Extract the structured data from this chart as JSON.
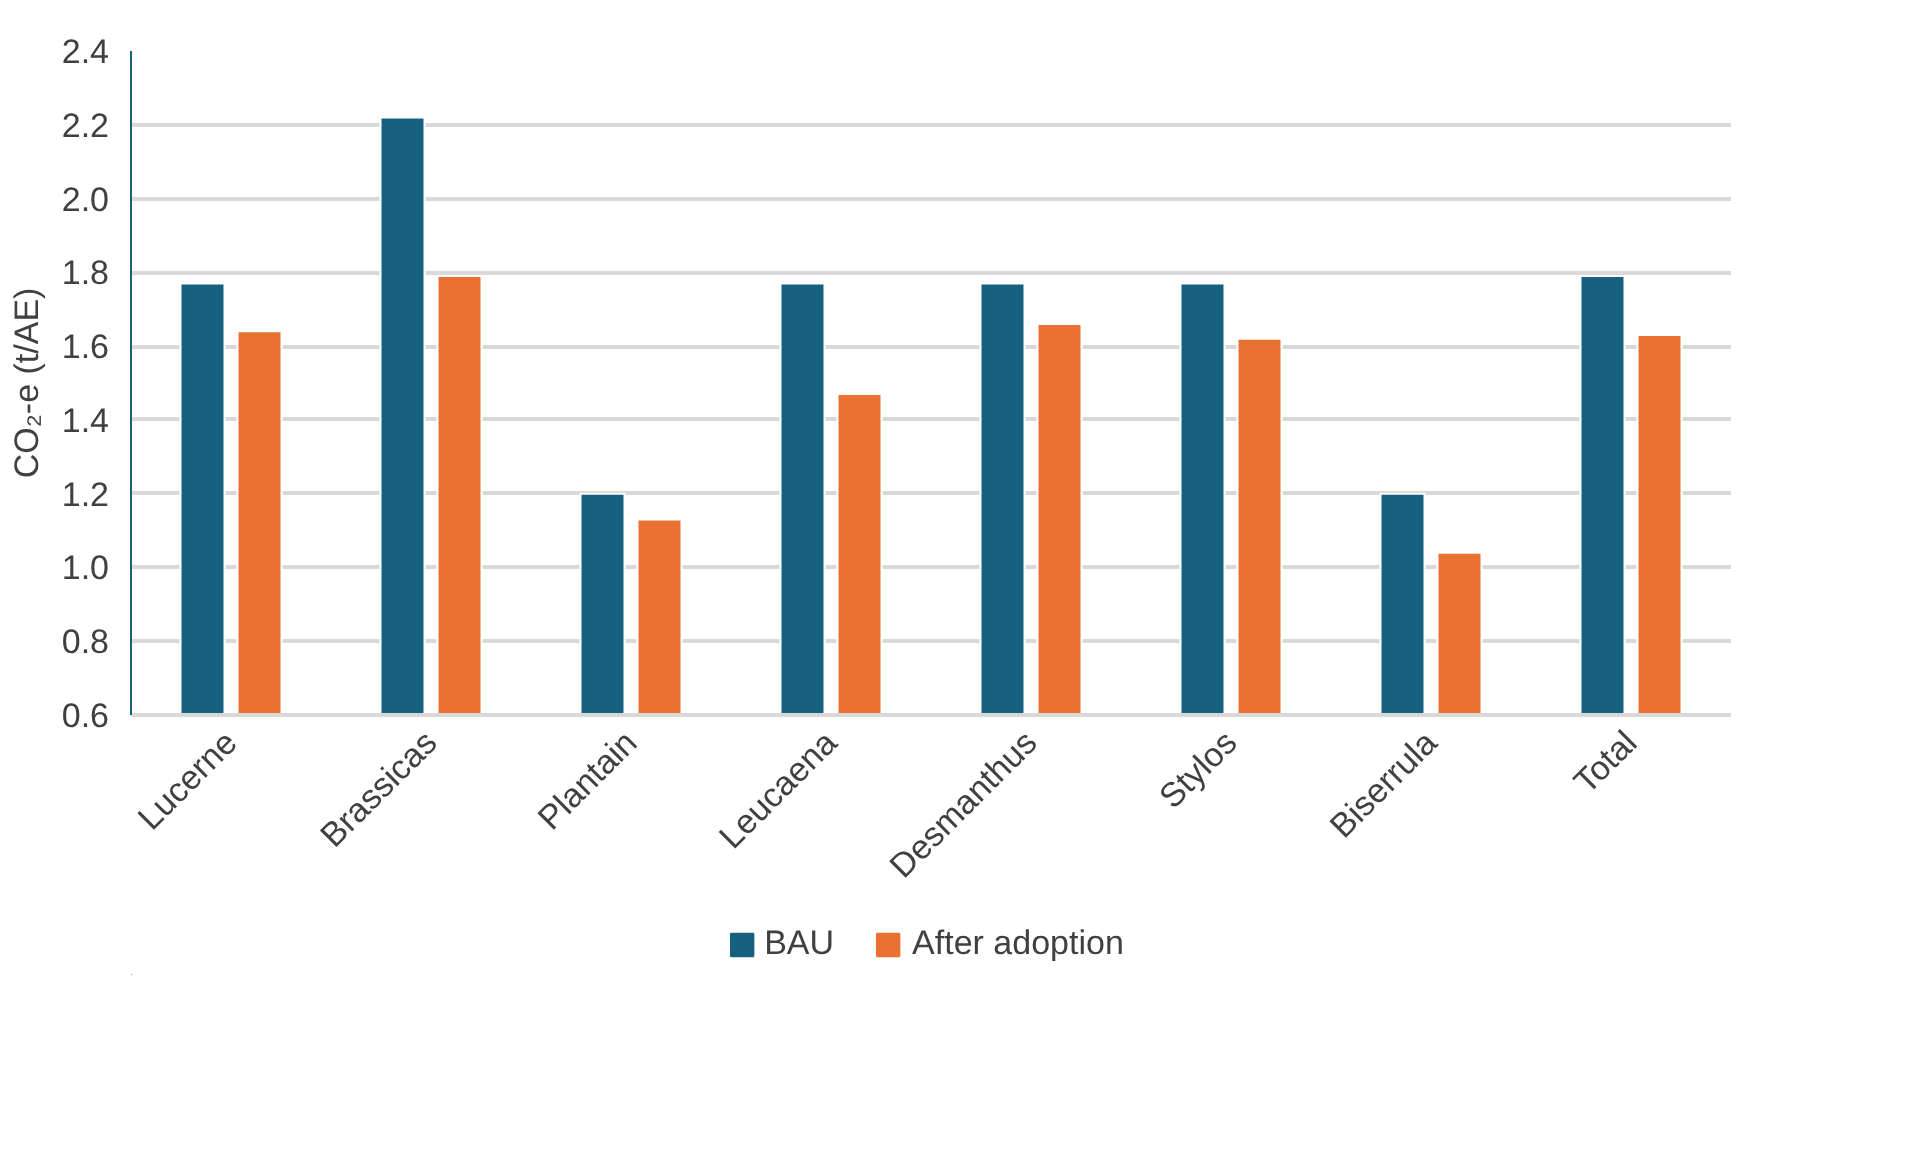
{
  "chart_data": {
    "type": "bar",
    "ylabel": "CO₂-e (t/AE)",
    "categories": [
      "Lucerne",
      "Brassicas",
      "Plantain",
      "Leucaena",
      "Desmanthus",
      "Stylos",
      "Biserrula",
      "Total"
    ],
    "series": [
      {
        "name": "BAU",
        "color": "#17607f",
        "values": [
          1.77,
          2.22,
          1.2,
          1.77,
          1.77,
          1.77,
          1.2,
          1.79
        ]
      },
      {
        "name": "After adoption",
        "color": "#e97132",
        "values": [
          1.64,
          1.79,
          1.13,
          1.47,
          1.66,
          1.62,
          1.04,
          1.63
        ]
      }
    ],
    "ylim": [
      0.6,
      2.4
    ],
    "yticks": [
      {
        "value": 0.6,
        "label": "0.6"
      },
      {
        "value": 0.8,
        "label": "0.8"
      },
      {
        "value": 1.0,
        "label": "1.0"
      },
      {
        "value": 1.2,
        "label": "1.2"
      },
      {
        "value": 1.4,
        "label": "1.4"
      },
      {
        "value": 1.6,
        "label": "1.6"
      },
      {
        "value": 1.8,
        "label": "1.8"
      },
      {
        "value": 2.0,
        "label": "2.0"
      },
      {
        "value": 2.2,
        "label": "2.2"
      },
      {
        "value": 2.4,
        "label": "2.4"
      }
    ],
    "grid": "y",
    "legend": "bottom"
  }
}
